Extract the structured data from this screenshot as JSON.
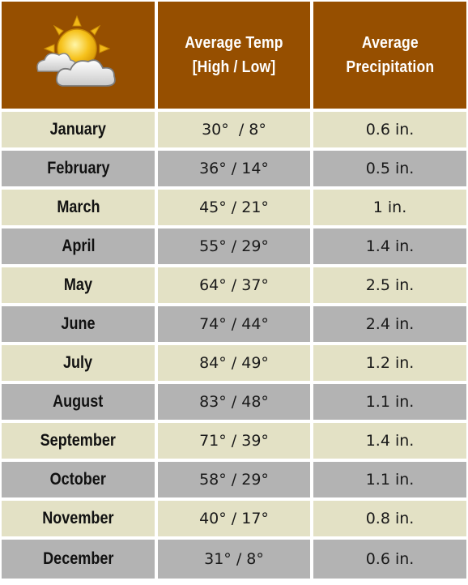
{
  "header": {
    "icon": "partly-sunny-icon",
    "temp_line1": "Average Temp",
    "temp_line2": "[High  /  Low]",
    "precip_line1": "Average",
    "precip_line2": "Precipitation"
  },
  "colors": {
    "header_bg": "#964f00",
    "row_light": "#e3e1c5",
    "row_dark": "#b3b3b3"
  },
  "rows": [
    {
      "month": "January",
      "temp": "30°  / 8°",
      "precip": "0.6 in."
    },
    {
      "month": "February",
      "temp": "36° / 14°",
      "precip": "0.5 in."
    },
    {
      "month": "March",
      "temp": "45° / 21°",
      "precip": "1 in."
    },
    {
      "month": "April",
      "temp": "55° / 29°",
      "precip": "1.4 in."
    },
    {
      "month": "May",
      "temp": "64° / 37°",
      "precip": "2.5 in."
    },
    {
      "month": "June",
      "temp": "74° / 44°",
      "precip": "2.4 in."
    },
    {
      "month": "July",
      "temp": "84° / 49°",
      "precip": "1.2 in."
    },
    {
      "month": "August",
      "temp": "83° / 48°",
      "precip": "1.1 in."
    },
    {
      "month": "September",
      "temp": "71° / 39°",
      "precip": "1.4 in."
    },
    {
      "month": "October",
      "temp": "58° / 29°",
      "precip": "1.1 in."
    },
    {
      "month": "November",
      "temp": "40° / 17°",
      "precip": "0.8 in."
    },
    {
      "month": "December",
      "temp": "31° / 8°",
      "precip": "0.6 in."
    }
  ]
}
